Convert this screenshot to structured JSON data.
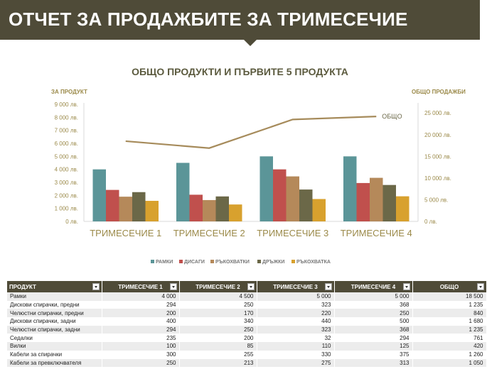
{
  "header": {
    "title": "ОТЧЕТ ЗА ПРОДАЖБИТЕ ЗА ТРИМЕСЕЧИЕ"
  },
  "chart": {
    "title": "ОБЩО ПРОДУКТИ И ПЪРВИТЕ 5 ПРОДУКТА",
    "left_axis_title": "ЗА ПРОДУКТ",
    "right_axis_title": "ОБЩО ПРОДАЖБИ"
  },
  "chart_data": {
    "type": "bar",
    "title": "ОБЩО ПРОДУКТИ И ПЪРВИТЕ 5 ПРОДУКТА",
    "ylabel": "ЗА ПРОДУКТ",
    "y2label": "ОБЩО ПРОДАЖБИ",
    "categories": [
      "ТРИМЕСЕЧИЕ 1",
      "ТРИМЕСЕЧИЕ 2",
      "ТРИМЕСЕЧИЕ 3",
      "ТРИМЕСЕЧИЕ 4"
    ],
    "ylim": [
      0,
      9000
    ],
    "y2lim": [
      0,
      27000
    ],
    "y_ticks": [
      "0 лв.",
      "1 000 лв.",
      "2 000 лв.",
      "3 000 лв.",
      "4 000 лв.",
      "5 000 лв.",
      "6 000 лв.",
      "7 000 лв.",
      "8 000 лв.",
      "9 000 лв."
    ],
    "y2_ticks": [
      "0 лв.",
      "5 000 лв.",
      "10 000 лв.",
      "15 000 лв.",
      "20 000 лв.",
      "25 000 лв."
    ],
    "series": [
      {
        "name": "РАМКИ",
        "color": "#5b9598",
        "values": [
          4000,
          4500,
          5000,
          5000
        ]
      },
      {
        "name": "ДИСАГИ",
        "color": "#c0504d",
        "values": [
          2420,
          2050,
          4000,
          2950
        ]
      },
      {
        "name": "РЪКОХВАТКИ",
        "color": "#b5895a",
        "values": [
          1900,
          1640,
          3460,
          3350
        ]
      },
      {
        "name": "ДРЪЖКИ",
        "color": "#6b6848",
        "values": [
          2250,
          1920,
          2450,
          2800
        ]
      },
      {
        "name": "РЪКОХВАТКА",
        "color": "#d8a12e",
        "values": [
          1580,
          1300,
          1720,
          1930
        ]
      }
    ],
    "line": {
      "name": "ОБЩО",
      "color": "#a68b5b",
      "values": [
        18500,
        16900,
        23500,
        24200
      ]
    },
    "legend_position": "bottom",
    "grid": false
  },
  "table": {
    "columns": [
      "ПРОДУКТ",
      "ТРИМЕСЕЧИЕ 1",
      "ТРИМЕСЕЧИЕ 2",
      "ТРИМЕСЕЧИЕ 3",
      "ТРИМЕСЕЧИЕ 4",
      "ОБЩО"
    ],
    "rows": [
      [
        "Рамки",
        "4 000",
        "4 500",
        "5 000",
        "5 000",
        "18 500"
      ],
      [
        "Дискови спирачки, предни",
        "294",
        "250",
        "323",
        "368",
        "1 235"
      ],
      [
        "Челюстни спирачки, предни",
        "200",
        "170",
        "220",
        "250",
        "840"
      ],
      [
        "Дискови спирачки, задни",
        "400",
        "340",
        "440",
        "500",
        "1 680"
      ],
      [
        "Челюстни спирачки, задни",
        "294",
        "250",
        "323",
        "368",
        "1 235"
      ],
      [
        "Седалки",
        "235",
        "200",
        "32",
        "294",
        "761"
      ],
      [
        "Вилки",
        "100",
        "85",
        "110",
        "125",
        "420"
      ],
      [
        "Кабели за спирачки",
        "300",
        "255",
        "330",
        "375",
        "1 260"
      ],
      [
        "Кабели за превключвателя",
        "250",
        "213",
        "275",
        "313",
        "1 050"
      ]
    ]
  }
}
